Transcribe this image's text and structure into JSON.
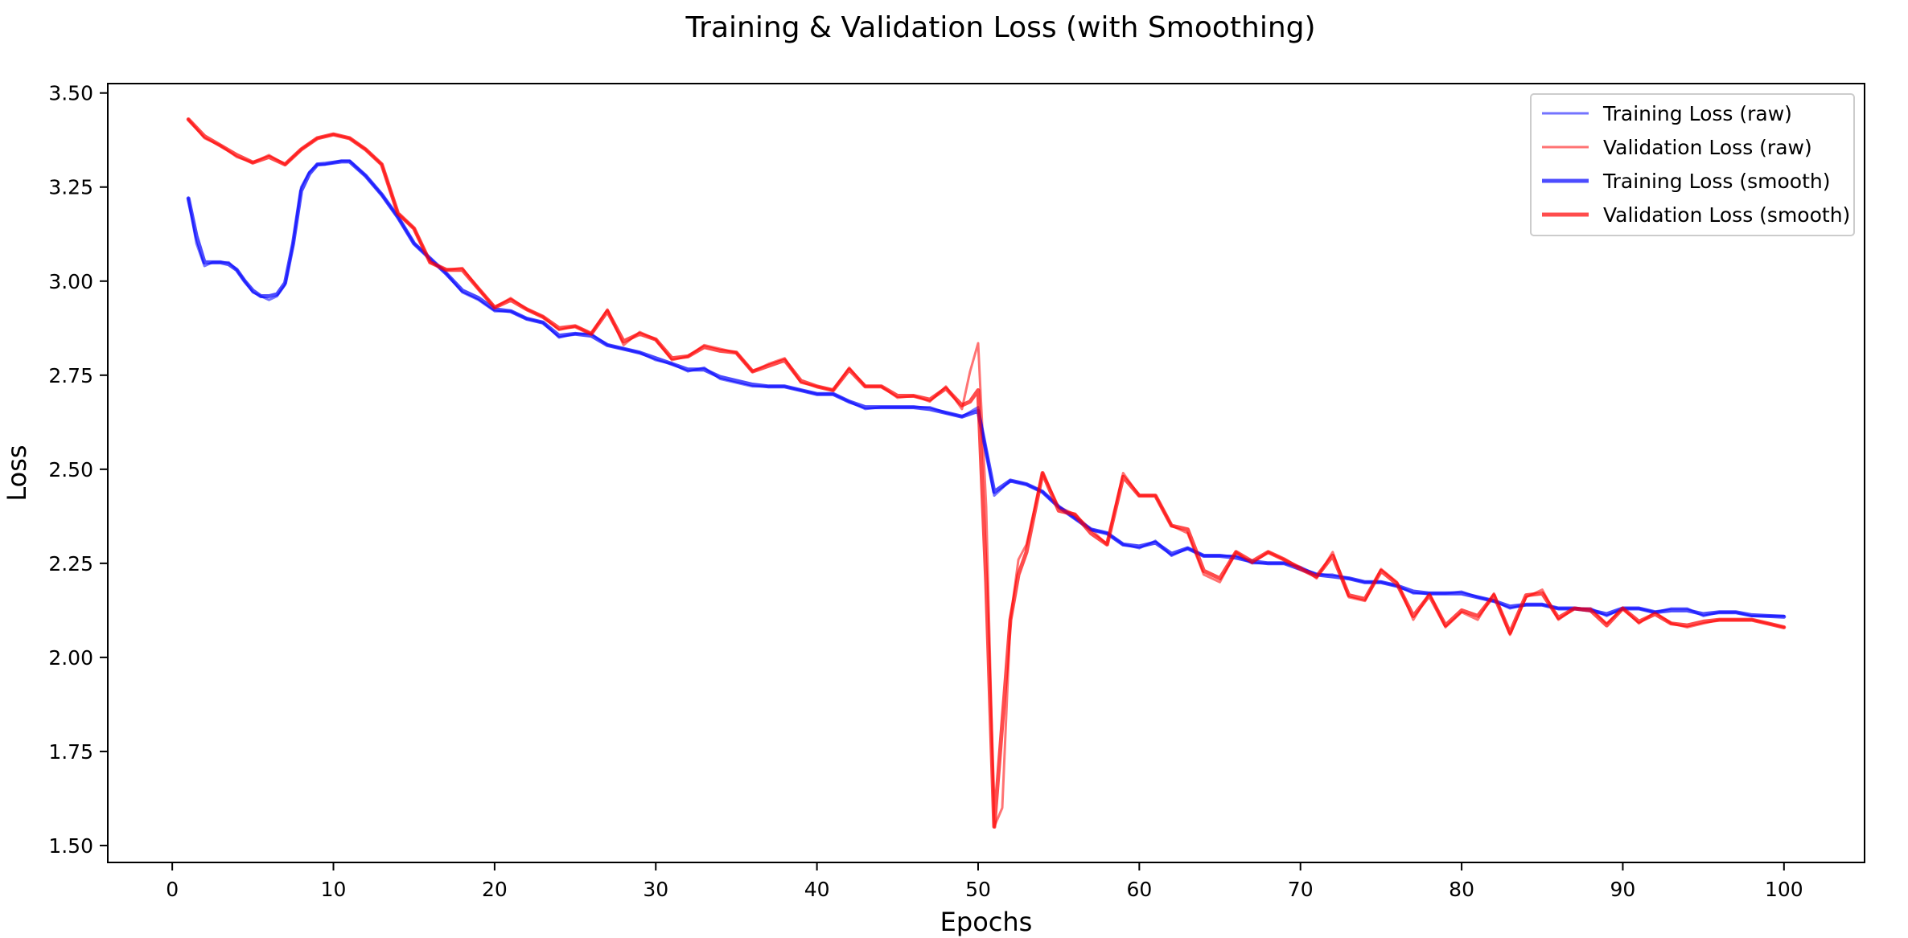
{
  "chart_data": {
    "type": "line",
    "title": "Training & Validation Loss (with Smoothing)",
    "xlabel": "Epochs",
    "ylabel": "Loss",
    "xlim": [
      -4,
      105
    ],
    "ylim": [
      1.455,
      3.525
    ],
    "xticks": [
      0,
      10,
      20,
      30,
      40,
      50,
      60,
      70,
      80,
      90,
      100
    ],
    "yticks": [
      1.5,
      1.75,
      2.0,
      2.25,
      2.5,
      2.75,
      3.0,
      3.25,
      3.5
    ],
    "ytick_labels": [
      "1.50",
      "1.75",
      "2.00",
      "2.25",
      "2.50",
      "2.75",
      "3.00",
      "3.25",
      "3.50"
    ],
    "grid": false,
    "legend_position": "top-right",
    "colors": {
      "training": "#0000ff",
      "validation": "#ff0000"
    },
    "series": [
      {
        "name": "Training Loss (raw)",
        "color": "#0000ff",
        "opacity": 0.55,
        "width": 3,
        "x": [
          1,
          1.5,
          2,
          2.5,
          3,
          3.5,
          4,
          4.5,
          5,
          5.5,
          6,
          6.5,
          7,
          7.5,
          8,
          8.5,
          9,
          9.5,
          10,
          10.5,
          11,
          12,
          13,
          14,
          15,
          16,
          17,
          18,
          19,
          20,
          21,
          22,
          23,
          24,
          25,
          26,
          27,
          28,
          29,
          30,
          31,
          32,
          33,
          34,
          35,
          36,
          37,
          38,
          39,
          40,
          41,
          42,
          43,
          44,
          45,
          46,
          47,
          48,
          49,
          50,
          51,
          52,
          53,
          54,
          55,
          56,
          57,
          58,
          59,
          60,
          61,
          62,
          63,
          64,
          65,
          66,
          67,
          68,
          69,
          70,
          71,
          72,
          73,
          74,
          75,
          76,
          77,
          78,
          79,
          80,
          81,
          82,
          83,
          84,
          85,
          86,
          87,
          88,
          89,
          90,
          91,
          92,
          93,
          94,
          95,
          96,
          97,
          98,
          99,
          100
        ],
        "y": [
          3.22,
          3.1,
          3.04,
          3.05,
          3.05,
          3.05,
          3.03,
          3.0,
          2.97,
          2.96,
          2.95,
          2.96,
          2.99,
          3.1,
          3.25,
          3.29,
          3.31,
          3.31,
          3.315,
          3.32,
          3.32,
          3.28,
          3.23,
          3.17,
          3.1,
          3.06,
          3.02,
          2.97,
          2.95,
          2.92,
          2.92,
          2.9,
          2.89,
          2.85,
          2.86,
          2.86,
          2.83,
          2.82,
          2.81,
          2.79,
          2.78,
          2.76,
          2.77,
          2.74,
          2.73,
          2.72,
          2.72,
          2.72,
          2.71,
          2.7,
          2.7,
          2.68,
          2.66,
          2.665,
          2.665,
          2.665,
          2.665,
          2.65,
          2.64,
          2.665,
          2.43,
          2.47,
          2.46,
          2.44,
          2.4,
          2.37,
          2.34,
          2.33,
          2.3,
          2.29,
          2.31,
          2.27,
          2.29,
          2.27,
          2.27,
          2.27,
          2.25,
          2.25,
          2.25,
          2.24,
          2.22,
          2.22,
          2.21,
          2.2,
          2.2,
          2.19,
          2.17,
          2.17,
          2.17,
          2.175,
          2.16,
          2.15,
          2.13,
          2.14,
          2.14,
          2.13,
          2.13,
          2.13,
          2.11,
          2.13,
          2.13,
          2.12,
          2.13,
          2.13,
          2.11,
          2.12,
          2.12,
          2.11,
          2.11,
          2.11
        ]
      },
      {
        "name": "Validation Loss (raw)",
        "color": "#ff0000",
        "opacity": 0.55,
        "width": 3,
        "x": [
          1,
          2,
          3,
          4,
          5,
          6,
          7,
          8,
          9,
          10,
          11,
          12,
          13,
          14,
          15,
          16,
          17,
          18,
          19,
          20,
          21,
          22,
          23,
          24,
          25,
          26,
          27,
          28,
          29,
          30,
          31,
          32,
          33,
          34,
          35,
          36,
          37,
          38,
          39,
          40,
          41,
          42,
          43,
          44,
          45,
          46,
          47,
          48,
          49,
          49.5,
          50,
          50.5,
          51,
          51.5,
          52,
          52.5,
          53,
          54,
          55,
          56,
          57,
          58,
          59,
          60,
          61,
          62,
          63,
          64,
          65,
          66,
          67,
          68,
          69,
          70,
          71,
          72,
          73,
          74,
          75,
          76,
          77,
          78,
          79,
          80,
          81,
          82,
          83,
          84,
          85,
          86,
          87,
          88,
          89,
          90,
          91,
          92,
          93,
          94,
          95,
          96,
          97,
          98,
          99,
          100
        ],
        "y": [
          3.43,
          3.38,
          3.36,
          3.33,
          3.315,
          3.335,
          3.31,
          3.35,
          3.38,
          3.39,
          3.38,
          3.35,
          3.31,
          3.18,
          3.14,
          3.05,
          3.03,
          3.035,
          2.98,
          2.93,
          2.955,
          2.925,
          2.905,
          2.87,
          2.88,
          2.86,
          2.925,
          2.83,
          2.865,
          2.845,
          2.79,
          2.8,
          2.83,
          2.82,
          2.81,
          2.76,
          2.78,
          2.795,
          2.73,
          2.72,
          2.71,
          2.77,
          2.72,
          2.72,
          2.69,
          2.695,
          2.68,
          2.72,
          2.66,
          2.76,
          2.835,
          2.4,
          1.55,
          1.6,
          2.1,
          2.26,
          2.3,
          2.49,
          2.4,
          2.38,
          2.34,
          2.3,
          2.49,
          2.43,
          2.43,
          2.35,
          2.33,
          2.22,
          2.2,
          2.28,
          2.25,
          2.28,
          2.26,
          2.24,
          2.21,
          2.28,
          2.16,
          2.15,
          2.235,
          2.2,
          2.1,
          2.17,
          2.08,
          2.12,
          2.1,
          2.17,
          2.06,
          2.16,
          2.18,
          2.1,
          2.13,
          2.13,
          2.09,
          2.13,
          2.09,
          2.12,
          2.09,
          2.08,
          2.09,
          2.1,
          2.1,
          2.1,
          2.09,
          2.08
        ]
      },
      {
        "name": "Training Loss (smooth)",
        "color": "#0000ff",
        "opacity": 0.7,
        "width": 5,
        "x": [
          1,
          1.5,
          2,
          2.5,
          3,
          3.5,
          4,
          4.5,
          5,
          5.5,
          6,
          6.5,
          7,
          7.5,
          8,
          8.5,
          9,
          9.5,
          10,
          10.5,
          11,
          12,
          13,
          14,
          15,
          16,
          17,
          18,
          19,
          20,
          21,
          22,
          23,
          24,
          25,
          26,
          27,
          28,
          29,
          30,
          31,
          32,
          33,
          34,
          35,
          36,
          37,
          38,
          39,
          40,
          41,
          42,
          43,
          44,
          45,
          46,
          47,
          48,
          49,
          50,
          51,
          52,
          53,
          54,
          55,
          56,
          57,
          58,
          59,
          60,
          61,
          62,
          63,
          64,
          65,
          66,
          67,
          68,
          69,
          70,
          71,
          72,
          73,
          74,
          75,
          76,
          77,
          78,
          79,
          80,
          81,
          82,
          83,
          84,
          85,
          86,
          87,
          88,
          89,
          90,
          91,
          92,
          93,
          94,
          95,
          96,
          97,
          98,
          99,
          100
        ],
        "y": [
          3.22,
          3.12,
          3.05,
          3.05,
          3.05,
          3.045,
          3.03,
          3.0,
          2.975,
          2.96,
          2.96,
          2.965,
          2.995,
          3.1,
          3.24,
          3.285,
          3.31,
          3.312,
          3.315,
          3.318,
          3.318,
          3.28,
          3.23,
          3.17,
          3.1,
          3.06,
          3.02,
          2.975,
          2.955,
          2.925,
          2.92,
          2.9,
          2.89,
          2.855,
          2.86,
          2.855,
          2.83,
          2.82,
          2.81,
          2.795,
          2.78,
          2.765,
          2.765,
          2.745,
          2.735,
          2.725,
          2.72,
          2.72,
          2.71,
          2.7,
          2.7,
          2.68,
          2.665,
          2.665,
          2.665,
          2.665,
          2.66,
          2.65,
          2.64,
          2.655,
          2.44,
          2.47,
          2.46,
          2.44,
          2.4,
          2.37,
          2.34,
          2.33,
          2.3,
          2.295,
          2.305,
          2.275,
          2.29,
          2.27,
          2.27,
          2.265,
          2.255,
          2.25,
          2.25,
          2.235,
          2.22,
          2.215,
          2.21,
          2.2,
          2.2,
          2.19,
          2.175,
          2.17,
          2.17,
          2.17,
          2.16,
          2.15,
          2.135,
          2.14,
          2.14,
          2.13,
          2.13,
          2.125,
          2.115,
          2.13,
          2.13,
          2.12,
          2.125,
          2.125,
          2.115,
          2.12,
          2.12,
          2.112,
          2.11,
          2.108
        ]
      },
      {
        "name": "Validation Loss (smooth)",
        "color": "#ff0000",
        "opacity": 0.7,
        "width": 5,
        "x": [
          1,
          2,
          3,
          4,
          5,
          6,
          7,
          8,
          9,
          10,
          11,
          12,
          13,
          14,
          15,
          16,
          17,
          18,
          19,
          20,
          21,
          22,
          23,
          24,
          25,
          26,
          27,
          28,
          29,
          30,
          31,
          32,
          33,
          34,
          35,
          36,
          37,
          38,
          39,
          40,
          41,
          42,
          43,
          44,
          45,
          46,
          47,
          48,
          49,
          49.5,
          50,
          50.5,
          51,
          52,
          52.5,
          53,
          54,
          55,
          56,
          57,
          58,
          59,
          60,
          61,
          62,
          63,
          64,
          65,
          66,
          67,
          68,
          69,
          70,
          71,
          72,
          73,
          74,
          75,
          76,
          77,
          78,
          79,
          80,
          81,
          82,
          83,
          84,
          85,
          86,
          87,
          88,
          89,
          90,
          91,
          92,
          93,
          94,
          95,
          96,
          97,
          98,
          99,
          100
        ],
        "y": [
          3.43,
          3.385,
          3.36,
          3.335,
          3.315,
          3.33,
          3.31,
          3.35,
          3.38,
          3.39,
          3.38,
          3.35,
          3.31,
          3.18,
          3.14,
          3.05,
          3.03,
          3.03,
          2.98,
          2.93,
          2.95,
          2.925,
          2.905,
          2.875,
          2.88,
          2.86,
          2.92,
          2.84,
          2.86,
          2.845,
          2.795,
          2.8,
          2.825,
          2.815,
          2.81,
          2.76,
          2.775,
          2.79,
          2.735,
          2.72,
          2.71,
          2.765,
          2.72,
          2.72,
          2.695,
          2.695,
          2.685,
          2.715,
          2.67,
          2.68,
          2.71,
          2.2,
          1.55,
          2.1,
          2.22,
          2.28,
          2.49,
          2.39,
          2.38,
          2.33,
          2.3,
          2.48,
          2.43,
          2.43,
          2.35,
          2.34,
          2.23,
          2.21,
          2.28,
          2.255,
          2.28,
          2.26,
          2.235,
          2.215,
          2.27,
          2.165,
          2.155,
          2.23,
          2.195,
          2.11,
          2.165,
          2.085,
          2.125,
          2.11,
          2.165,
          2.065,
          2.165,
          2.17,
          2.105,
          2.13,
          2.125,
          2.085,
          2.13,
          2.095,
          2.115,
          2.09,
          2.085,
          2.095,
          2.1,
          2.1,
          2.1,
          2.09,
          2.08
        ]
      }
    ]
  }
}
